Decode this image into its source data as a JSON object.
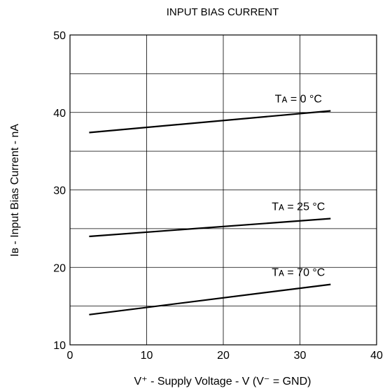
{
  "chart_data": {
    "type": "line",
    "title": "INPUT BIAS CURRENT",
    "xlabel": "V⁺ - Supply Voltage - V (V⁻ = GND)",
    "ylabel": "Iʙ - Input Bias Current - nA",
    "xlim": [
      0,
      40
    ],
    "ylim": [
      10,
      50
    ],
    "x_ticks": [
      "0",
      "10",
      "20",
      "30",
      "40"
    ],
    "y_ticks": [
      "10",
      "20",
      "30",
      "40",
      "50"
    ],
    "grid": true,
    "grid_x_step": 10,
    "grid_y_step": 5,
    "series": [
      {
        "name": "Tᴀ = 0 °C",
        "x": [
          2.5,
          34
        ],
        "y": [
          37.4,
          40.2
        ]
      },
      {
        "name": "Tᴀ = 25 °C",
        "x": [
          2.5,
          34
        ],
        "y": [
          24.0,
          26.3
        ]
      },
      {
        "name": "Tᴀ = 70 °C",
        "x": [
          2.5,
          34
        ],
        "y": [
          13.9,
          17.8
        ]
      }
    ]
  }
}
